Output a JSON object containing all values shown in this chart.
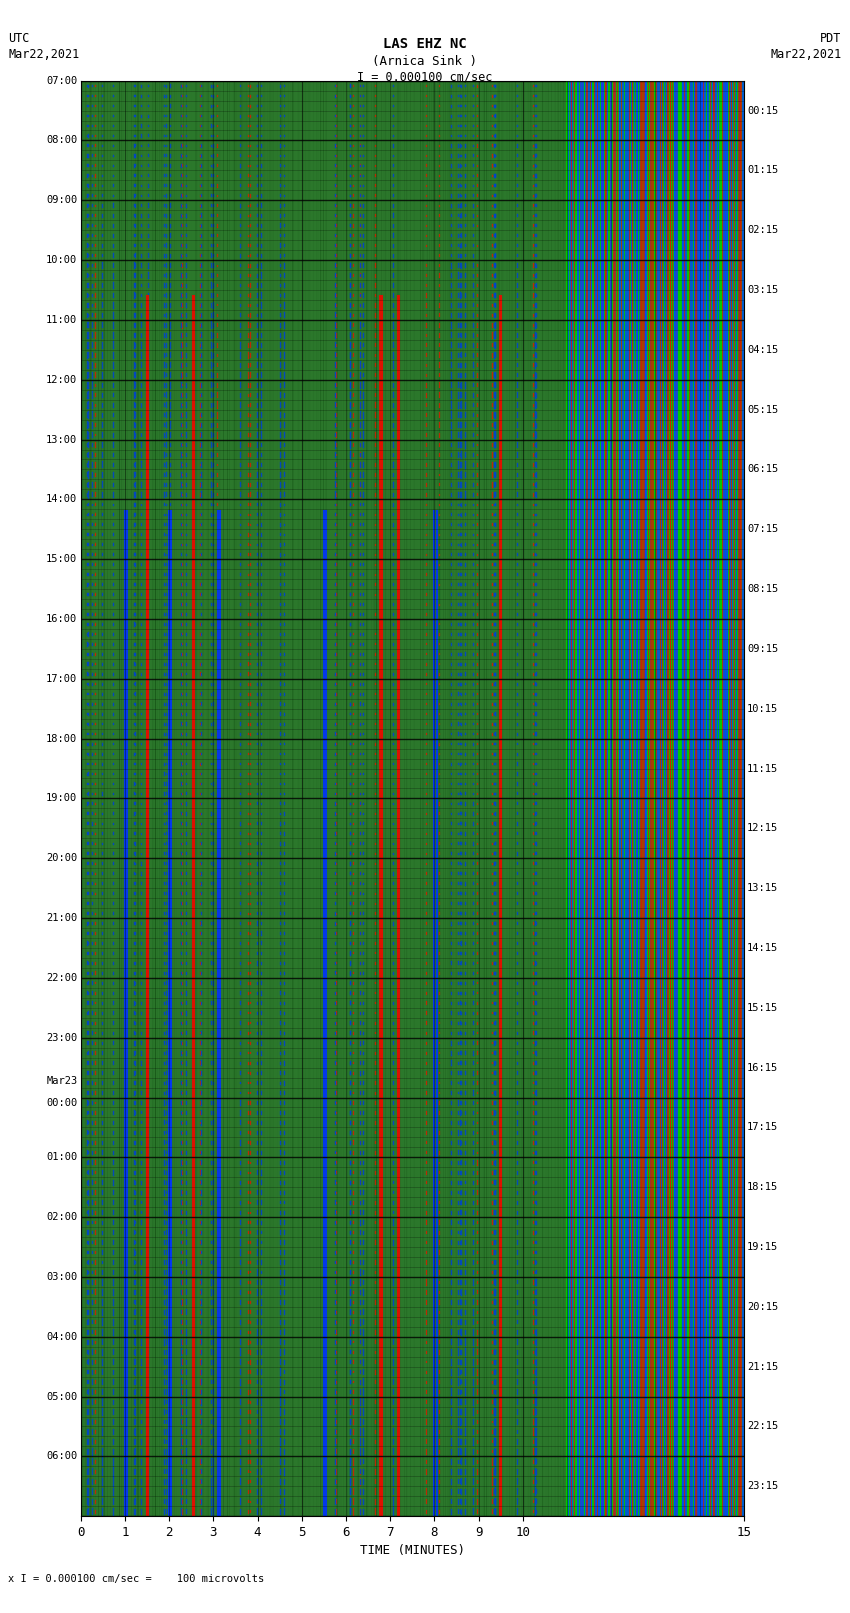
{
  "title_line1": "LAS EHZ NC",
  "title_line2": "(Arnica Sink )",
  "title_line3": "I = 0.000100 cm/sec",
  "top_left_label": "UTC",
  "top_left_date": "Mar22,2021",
  "top_right_label": "PDT",
  "top_right_date": "Mar22,2021",
  "bottom_label": "TIME (MINUTES)",
  "bottom_note": "x I = 0.000100 cm/sec =    100 microvolts",
  "left_times_utc": [
    "07:00",
    "08:00",
    "09:00",
    "10:00",
    "11:00",
    "12:00",
    "13:00",
    "14:00",
    "15:00",
    "16:00",
    "17:00",
    "18:00",
    "19:00",
    "20:00",
    "21:00",
    "22:00",
    "23:00",
    "00:00",
    "01:00",
    "02:00",
    "03:00",
    "04:00",
    "05:00",
    "06:00"
  ],
  "mar23_row": 17,
  "right_times_pdt": [
    "00:15",
    "01:15",
    "02:15",
    "03:15",
    "04:15",
    "05:15",
    "06:15",
    "07:15",
    "08:15",
    "09:15",
    "10:15",
    "11:15",
    "12:15",
    "13:15",
    "14:15",
    "15:15",
    "16:15",
    "17:15",
    "18:15",
    "19:15",
    "20:15",
    "21:15",
    "22:15",
    "23:15"
  ],
  "x_ticks": [
    0,
    1,
    2,
    3,
    4,
    5,
    6,
    7,
    8,
    9,
    10,
    15
  ],
  "bg_color": "#1a5c1a",
  "fig_bg": "#ffffff",
  "n_rows": 24,
  "n_subrows": 6,
  "n_minutes": 15,
  "seed": 12345
}
